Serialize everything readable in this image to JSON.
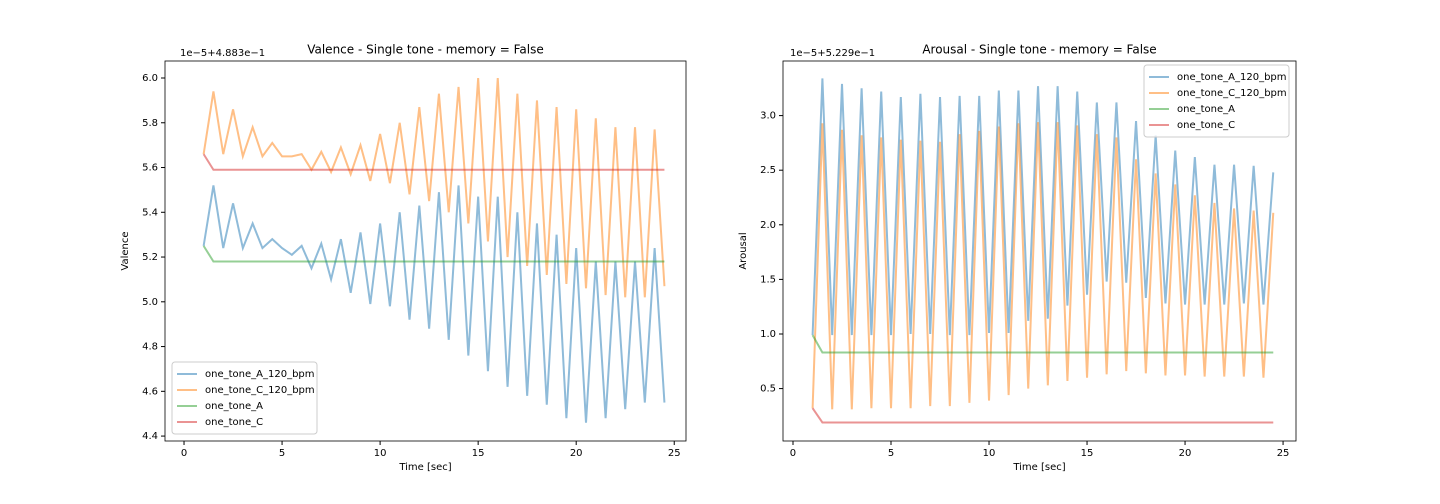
{
  "chart_data": [
    {
      "type": "line",
      "title": "Valence - Single tone - memory = False",
      "offset_label": "1e−5+4.883e−1",
      "xlabel": "Time [sec]",
      "ylabel": "Valence",
      "x": [
        1,
        1.5,
        2,
        2.5,
        3,
        3.5,
        4,
        4.5,
        5,
        5.5,
        6,
        6.5,
        7,
        7.5,
        8,
        8.5,
        9,
        9.5,
        10,
        10.5,
        11,
        11.5,
        12,
        12.5,
        13,
        13.5,
        14,
        14.5,
        15,
        15.5,
        16,
        16.5,
        17,
        17.5,
        18,
        18.5,
        19,
        19.5,
        20,
        20.5,
        21,
        21.5,
        22,
        22.5,
        23,
        23.5,
        24,
        24.5
      ],
      "series": [
        {
          "name": "one_tone_A_120_bpm",
          "color": "#1f77b4",
          "values": [
            5.25,
            5.52,
            5.24,
            5.44,
            5.24,
            5.35,
            5.24,
            5.28,
            5.24,
            5.21,
            5.25,
            5.15,
            5.26,
            5.1,
            5.28,
            5.04,
            5.31,
            4.99,
            5.35,
            4.98,
            5.4,
            4.92,
            5.43,
            4.88,
            5.49,
            4.83,
            5.52,
            4.76,
            5.47,
            4.69,
            5.47,
            4.62,
            5.4,
            4.58,
            5.35,
            4.54,
            5.3,
            4.48,
            5.24,
            4.46,
            5.18,
            4.48,
            5.18,
            4.52,
            5.18,
            4.55,
            5.24,
            4.55
          ]
        },
        {
          "name": "one_tone_C_120_bpm",
          "color": "#ff7f0e",
          "values": [
            5.66,
            5.94,
            5.66,
            5.86,
            5.65,
            5.78,
            5.65,
            5.71,
            5.65,
            5.65,
            5.66,
            5.59,
            5.67,
            5.58,
            5.69,
            5.57,
            5.7,
            5.54,
            5.75,
            5.53,
            5.8,
            5.48,
            5.87,
            5.45,
            5.93,
            5.4,
            5.96,
            5.35,
            6.0,
            5.27,
            6.0,
            5.2,
            5.93,
            5.16,
            5.9,
            5.12,
            5.87,
            5.08,
            5.86,
            5.06,
            5.82,
            5.03,
            5.78,
            5.02,
            5.78,
            5.02,
            5.77,
            5.07
          ]
        },
        {
          "name": "one_tone_A",
          "color": "#2ca02c",
          "values": [
            5.25,
            5.18,
            5.18,
            5.18,
            5.18,
            5.18,
            5.18,
            5.18,
            5.18,
            5.18,
            5.18,
            5.18,
            5.18,
            5.18,
            5.18,
            5.18,
            5.18,
            5.18,
            5.18,
            5.18,
            5.18,
            5.18,
            5.18,
            5.18,
            5.18,
            5.18,
            5.18,
            5.18,
            5.18,
            5.18,
            5.18,
            5.18,
            5.18,
            5.18,
            5.18,
            5.18,
            5.18,
            5.18,
            5.18,
            5.18,
            5.18,
            5.18,
            5.18,
            5.18,
            5.18,
            5.18,
            5.18,
            5.18
          ]
        },
        {
          "name": "one_tone_C",
          "color": "#d62728",
          "values": [
            5.66,
            5.59,
            5.59,
            5.59,
            5.59,
            5.59,
            5.59,
            5.59,
            5.59,
            5.59,
            5.59,
            5.59,
            5.59,
            5.59,
            5.59,
            5.59,
            5.59,
            5.59,
            5.59,
            5.59,
            5.59,
            5.59,
            5.59,
            5.59,
            5.59,
            5.59,
            5.59,
            5.59,
            5.59,
            5.59,
            5.59,
            5.59,
            5.59,
            5.59,
            5.59,
            5.59,
            5.59,
            5.59,
            5.59,
            5.59,
            5.59,
            5.59,
            5.59,
            5.59,
            5.59,
            5.59,
            5.59,
            5.59
          ]
        }
      ],
      "xlim": [
        -0.97,
        25.6
      ],
      "xticks": [
        0,
        5,
        10,
        15,
        20,
        25
      ],
      "ylim": [
        4.378,
        6.076
      ],
      "yticks": [
        4.4,
        4.6,
        4.8,
        {
          "value": 5,
          "label": "5.0"
        },
        5.2,
        5.4,
        5.6,
        5.8,
        {
          "value": 6,
          "label": "6.0"
        }
      ],
      "legend": "lower left"
    },
    {
      "type": "line",
      "title": "Arousal - Single tone - memory = False",
      "offset_label": "1e−5+5.229e−1",
      "xlabel": "Time [sec]",
      "ylabel": "Arousal",
      "x": [
        1,
        1.5,
        2,
        2.5,
        3,
        3.5,
        4,
        4.5,
        5,
        5.5,
        6,
        6.5,
        7,
        7.5,
        8,
        8.5,
        9,
        9.5,
        10,
        10.5,
        11,
        11.5,
        12,
        12.5,
        13,
        13.5,
        14,
        14.5,
        15,
        15.5,
        16,
        16.5,
        17,
        17.5,
        18,
        18.5,
        19,
        19.5,
        20,
        20.5,
        21,
        21.5,
        22,
        22.5,
        23,
        23.5,
        24,
        24.5
      ],
      "series": [
        {
          "name": "one_tone_A_120_bpm",
          "color": "#1f77b4",
          "values": [
            0.99,
            3.34,
            0.99,
            3.29,
            0.99,
            3.25,
            0.99,
            3.22,
            0.99,
            3.17,
            1.0,
            3.2,
            1.0,
            3.17,
            0.99,
            3.18,
            0.99,
            3.18,
            1.01,
            3.23,
            1.01,
            3.23,
            1.12,
            3.27,
            1.14,
            3.27,
            1.26,
            3.22,
            1.36,
            3.12,
            1.48,
            3.12,
            1.47,
            2.95,
            1.33,
            2.82,
            1.28,
            2.68,
            1.27,
            2.62,
            1.27,
            2.55,
            1.27,
            2.55,
            1.28,
            2.54,
            1.27,
            2.48
          ]
        },
        {
          "name": "one_tone_C_120_bpm",
          "color": "#ff7f0e",
          "values": [
            0.32,
            2.93,
            0.31,
            2.87,
            0.31,
            2.82,
            0.32,
            2.8,
            0.32,
            2.78,
            0.32,
            2.77,
            0.34,
            2.76,
            0.34,
            2.83,
            0.37,
            2.86,
            0.39,
            2.9,
            0.44,
            2.93,
            0.5,
            2.94,
            0.53,
            2.94,
            0.57,
            2.91,
            0.6,
            2.83,
            0.63,
            2.8,
            0.66,
            2.6,
            0.64,
            2.47,
            0.62,
            2.37,
            0.62,
            2.27,
            0.61,
            2.2,
            0.61,
            2.15,
            0.61,
            2.13,
            0.6,
            2.11
          ]
        },
        {
          "name": "one_tone_A",
          "color": "#2ca02c",
          "values": [
            0.99,
            0.83,
            0.83,
            0.83,
            0.83,
            0.83,
            0.83,
            0.83,
            0.83,
            0.83,
            0.83,
            0.83,
            0.83,
            0.83,
            0.83,
            0.83,
            0.83,
            0.83,
            0.83,
            0.83,
            0.83,
            0.83,
            0.83,
            0.83,
            0.83,
            0.83,
            0.83,
            0.83,
            0.83,
            0.83,
            0.83,
            0.83,
            0.83,
            0.83,
            0.83,
            0.83,
            0.83,
            0.83,
            0.83,
            0.83,
            0.83,
            0.83,
            0.83,
            0.83,
            0.83,
            0.83,
            0.83,
            0.83
          ]
        },
        {
          "name": "one_tone_C",
          "color": "#d62728",
          "values": [
            0.32,
            0.19,
            0.19,
            0.19,
            0.19,
            0.19,
            0.19,
            0.19,
            0.19,
            0.19,
            0.19,
            0.19,
            0.19,
            0.19,
            0.19,
            0.19,
            0.19,
            0.19,
            0.19,
            0.19,
            0.19,
            0.19,
            0.19,
            0.19,
            0.19,
            0.19,
            0.19,
            0.19,
            0.19,
            0.19,
            0.19,
            0.19,
            0.19,
            0.19,
            0.19,
            0.19,
            0.19,
            0.19,
            0.19,
            0.19,
            0.19,
            0.19,
            0.19,
            0.19,
            0.19,
            0.19,
            0.19,
            0.19
          ]
        }
      ],
      "xlim": [
        -0.51,
        25.66
      ],
      "xticks": [
        0,
        5,
        10,
        15,
        20,
        25
      ],
      "ylim": [
        0.02,
        3.5
      ],
      "yticks": [
        0.5,
        {
          "value": 1,
          "label": "1.0"
        },
        1.5,
        {
          "value": 2,
          "label": "2.0"
        },
        2.5,
        {
          "value": 3,
          "label": "3.0"
        }
      ],
      "legend": "upper right"
    }
  ]
}
